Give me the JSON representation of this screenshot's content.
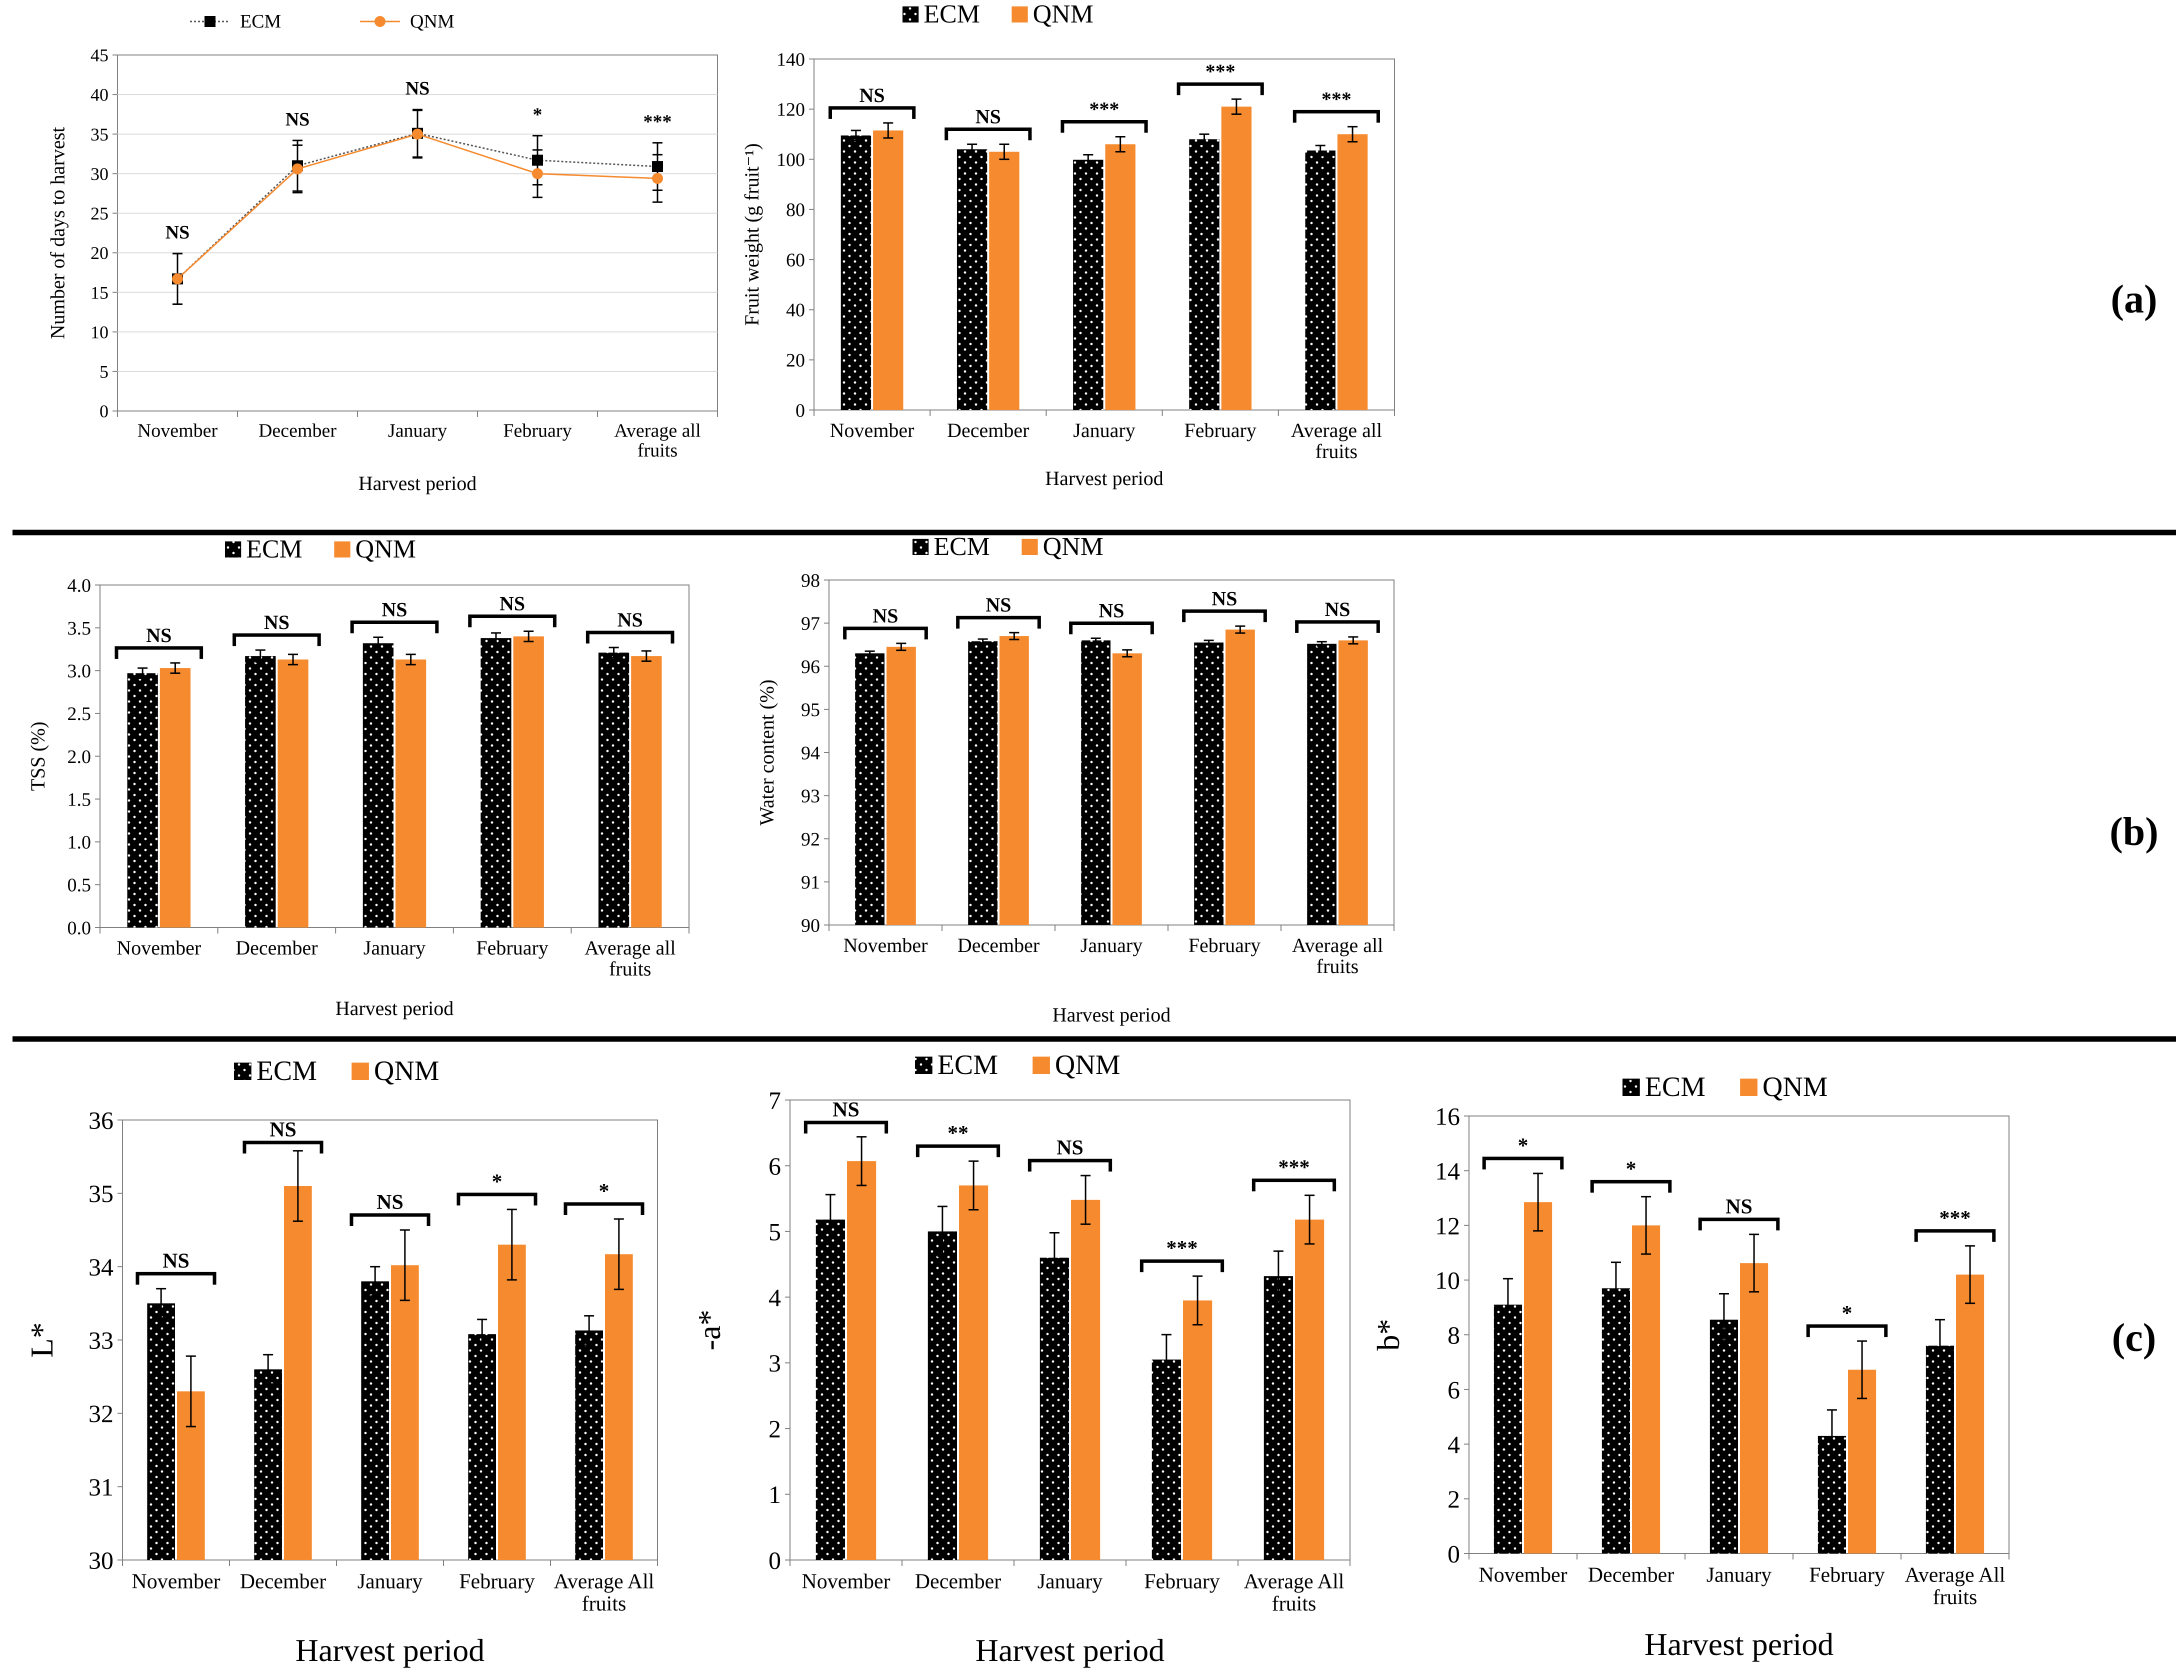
{
  "colors": {
    "ecm": "#000000",
    "qnm": "#F58A2E",
    "axis": "#808080",
    "grid": "#D9D9D9",
    "separator": "#000000"
  },
  "panel_labels": [
    "(a)",
    "(b)",
    "(c)"
  ],
  "chart_data": [
    {
      "id": "days",
      "type": "line",
      "panel": "(a)",
      "title": "",
      "xlabel": "Harvest period",
      "ylabel": "Number of days to harvest",
      "ylim": [
        0,
        45
      ],
      "ytick_step": 5,
      "ytick_decimals": 0,
      "grid": true,
      "legend_position": "top",
      "categories": [
        "November",
        "December",
        "January",
        "February",
        "Average all fruits"
      ],
      "series": [
        {
          "name": "ECM",
          "values": [
            16.7,
            31.0,
            35.1,
            31.7,
            30.9
          ],
          "errors": [
            3.2,
            3.2,
            3.0,
            3.1,
            3.0
          ]
        },
        {
          "name": "QNM",
          "values": [
            16.7,
            30.6,
            35.0,
            30.0,
            29.4
          ],
          "errors": [
            3.2,
            3.0,
            3.0,
            3.0,
            3.0
          ]
        }
      ],
      "annotations": [
        "NS",
        "NS",
        "NS",
        "*",
        "***"
      ]
    },
    {
      "id": "weight",
      "type": "bar",
      "panel": "(a)",
      "title": "",
      "xlabel": "Harvest period",
      "ylabel": "Fruit weight (g fruit⁻¹)",
      "ylim": [
        0,
        140
      ],
      "ytick_step": 20,
      "ytick_decimals": 0,
      "grid": false,
      "legend_position": "top",
      "categories": [
        "November",
        "December",
        "January",
        "February",
        "Average all fruits"
      ],
      "series": [
        {
          "name": "ECM",
          "values": [
            109.5,
            104.0,
            99.8,
            108.0,
            103.5
          ],
          "errors": [
            2.0,
            2.0,
            2.0,
            2.0,
            2.0
          ]
        },
        {
          "name": "QNM",
          "values": [
            111.5,
            103.0,
            106.0,
            121.0,
            110.0
          ],
          "errors": [
            3.0,
            3.0,
            3.0,
            3.0,
            3.0
          ]
        }
      ],
      "annotations": [
        "NS",
        "NS",
        "***",
        "***",
        "***"
      ]
    },
    {
      "id": "tss",
      "type": "bar",
      "panel": "(b)",
      "title": "",
      "xlabel": "Harvest period",
      "ylabel": "TSS (%)",
      "ylim": [
        0,
        4
      ],
      "ytick_step": 0.5,
      "ytick_decimals": 1,
      "grid": false,
      "legend_position": "top",
      "categories": [
        "November",
        "December",
        "January",
        "February",
        "Average all fruits"
      ],
      "series": [
        {
          "name": "ECM",
          "values": [
            2.97,
            3.17,
            3.32,
            3.38,
            3.21
          ],
          "errors": [
            0.06,
            0.07,
            0.07,
            0.06,
            0.06
          ]
        },
        {
          "name": "QNM",
          "values": [
            3.03,
            3.13,
            3.13,
            3.4,
            3.17
          ],
          "errors": [
            0.06,
            0.06,
            0.06,
            0.06,
            0.06
          ]
        }
      ],
      "annotations": [
        "NS",
        "NS",
        "NS",
        "NS",
        "NS"
      ]
    },
    {
      "id": "water",
      "type": "bar",
      "panel": "(b)",
      "title": "",
      "xlabel": "Harvest period",
      "ylabel": "Water content (%)",
      "ylim": [
        90,
        98
      ],
      "ytick_step": 1,
      "ytick_decimals": 0,
      "grid": false,
      "legend_position": "top",
      "categories": [
        "November",
        "December",
        "January",
        "February",
        "Average all fruits"
      ],
      "series": [
        {
          "name": "ECM",
          "values": [
            96.3,
            96.58,
            96.6,
            96.55,
            96.52
          ],
          "errors": [
            0.05,
            0.05,
            0.05,
            0.05,
            0.05
          ]
        },
        {
          "name": "QNM",
          "values": [
            96.45,
            96.7,
            96.3,
            96.85,
            96.6
          ],
          "errors": [
            0.08,
            0.08,
            0.08,
            0.08,
            0.08
          ]
        }
      ],
      "annotations": [
        "NS",
        "NS",
        "NS",
        "NS",
        "NS"
      ]
    },
    {
      "id": "lstar",
      "type": "bar",
      "panel": "(c)",
      "title": "",
      "xlabel": "Harvest period",
      "ylabel": "L*",
      "ylim": [
        30,
        36
      ],
      "ytick_step": 1,
      "ytick_decimals": 0,
      "grid": false,
      "legend_position": "top",
      "categories": [
        "November",
        "December",
        "January",
        "February",
        "Average All fruits"
      ],
      "series": [
        {
          "name": "ECM",
          "values": [
            33.5,
            32.6,
            33.8,
            33.08,
            33.13
          ],
          "errors": [
            0.2,
            0.2,
            0.2,
            0.2,
            0.2
          ]
        },
        {
          "name": "QNM",
          "values": [
            32.3,
            35.1,
            34.02,
            34.3,
            34.17
          ],
          "errors": [
            0.48,
            0.48,
            0.48,
            0.48,
            0.48
          ]
        }
      ],
      "annotations": [
        "NS",
        "NS",
        "NS",
        "*",
        "*"
      ]
    },
    {
      "id": "astar",
      "type": "bar",
      "panel": "(c)",
      "title": "",
      "xlabel": "Harvest period",
      "ylabel": "-a*",
      "ylim": [
        0,
        7
      ],
      "ytick_step": 1,
      "ytick_decimals": 0,
      "grid": false,
      "legend_position": "top",
      "categories": [
        "November",
        "December",
        "January",
        "February",
        "Average All fruits"
      ],
      "series": [
        {
          "name": "ECM",
          "values": [
            5.18,
            5.0,
            4.6,
            3.05,
            4.32
          ],
          "errors": [
            0.38,
            0.38,
            0.38,
            0.38,
            0.38
          ]
        },
        {
          "name": "QNM",
          "values": [
            6.07,
            5.7,
            5.48,
            3.95,
            5.18
          ],
          "errors": [
            0.37,
            0.37,
            0.37,
            0.37,
            0.37
          ]
        }
      ],
      "annotations": [
        "NS",
        "**",
        "NS",
        "***",
        "***"
      ]
    },
    {
      "id": "bstar",
      "type": "bar",
      "panel": "(c)",
      "title": "",
      "xlabel": "Harvest period",
      "ylabel": "b*",
      "ylim": [
        0,
        16
      ],
      "ytick_step": 2,
      "ytick_decimals": 0,
      "grid": false,
      "legend_position": "top",
      "categories": [
        "November",
        "December",
        "January",
        "February",
        "Average All fruits"
      ],
      "series": [
        {
          "name": "ECM",
          "values": [
            9.1,
            9.7,
            8.55,
            4.3,
            7.6
          ],
          "errors": [
            0.95,
            0.95,
            0.95,
            0.95,
            0.95
          ]
        },
        {
          "name": "QNM",
          "values": [
            12.85,
            12.0,
            10.62,
            6.72,
            10.2
          ],
          "errors": [
            1.05,
            1.05,
            1.05,
            1.05,
            1.05
          ]
        }
      ],
      "annotations": [
        "*",
        "*",
        "NS",
        "*",
        "***"
      ]
    }
  ]
}
